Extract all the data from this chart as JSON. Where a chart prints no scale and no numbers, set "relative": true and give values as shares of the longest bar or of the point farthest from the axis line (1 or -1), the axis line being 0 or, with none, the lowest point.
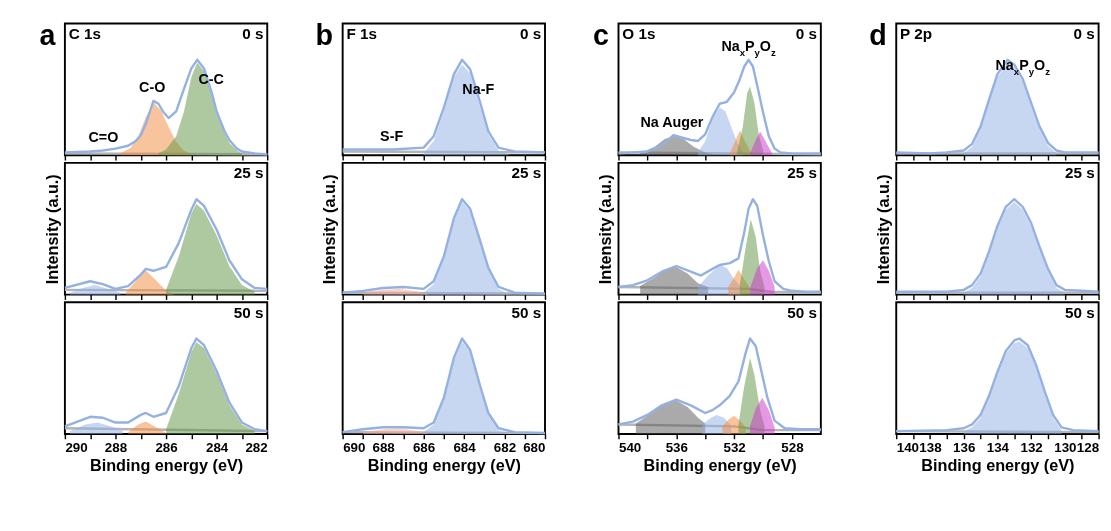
{
  "chart_data": [
    {
      "type": "line",
      "relative": true,
      "title": "a",
      "subtitle": "C 1s",
      "annotations": [
        "0 s",
        {
          "text": "C=O",
          "x": 288.5,
          "y": 0.05
        },
        {
          "text": "C-O",
          "x": 286.5,
          "y": 0.57
        },
        {
          "text": "C-C",
          "x": 284.2,
          "y": 0.66
        }
      ],
      "xlim": [
        290,
        282
      ],
      "xticks": [
        290,
        {
          "value": 289,
          "label": null
        },
        288,
        {
          "value": 287,
          "label": null
        },
        286,
        {
          "value": 285,
          "label": null
        },
        284,
        {
          "value": 283,
          "label": null
        },
        282
      ],
      "tick_labels": false,
      "series": [
        {
          "color": "#b4b4b4",
          "x": [
            290,
            282
          ],
          "values": [
            0.02,
            0.01
          ]
        },
        {
          "type": "area",
          "color": "#f08a3c",
          "x": [
            287.8,
            287.4,
            287.1,
            286.8,
            286.48,
            286.2,
            285.9,
            285.6,
            285.3,
            285.0
          ],
          "values": [
            0.02,
            0.08,
            0.2,
            0.4,
            0.55,
            0.47,
            0.3,
            0.14,
            0.05,
            0.01
          ]
        },
        {
          "type": "area",
          "color": "#5e9440",
          "x": [
            286.3,
            286.0,
            285.6,
            285.3,
            285.0,
            284.77,
            284.5,
            284.2,
            284.0,
            283.7,
            283.5,
            283.2,
            283.0
          ],
          "values": [
            0.02,
            0.06,
            0.2,
            0.45,
            0.82,
            0.97,
            0.88,
            0.64,
            0.44,
            0.24,
            0.13,
            0.05,
            0.02
          ]
        },
        {
          "color": "#94b1e2",
          "x": [
            290,
            289,
            288.5,
            288,
            287.5,
            287.2,
            287,
            286.8,
            286.5,
            286.3,
            286.1,
            285.9,
            285.6,
            285.3,
            285,
            284.77,
            284.5,
            284.2,
            284,
            283.7,
            283.5,
            283.2,
            283,
            282.5,
            282
          ],
          "values": [
            0.03,
            0.04,
            0.05,
            0.07,
            0.1,
            0.15,
            0.21,
            0.33,
            0.57,
            0.54,
            0.45,
            0.39,
            0.46,
            0.69,
            0.91,
            1,
            0.91,
            0.66,
            0.46,
            0.26,
            0.16,
            0.07,
            0.04,
            0.02,
            0.01
          ]
        }
      ]
    },
    {
      "type": "line",
      "relative": true,
      "ylabel": "Intensity (a.u.)",
      "annotations": [
        "25 s"
      ],
      "xlim": [
        290,
        282
      ],
      "xticks": [
        290,
        {
          "value": 289,
          "label": null
        },
        288,
        {
          "value": 287,
          "label": null
        },
        286,
        {
          "value": 285,
          "label": null
        },
        284,
        {
          "value": 283,
          "label": null
        },
        282
      ],
      "tick_labels": false,
      "series": [
        {
          "color": "#b4b4b4",
          "x": [
            290,
            282
          ],
          "values": [
            0.05,
            0.04
          ]
        },
        {
          "type": "area",
          "color": "#8fb0e6",
          "x": [
            289.8,
            289.3,
            288.8,
            288.3,
            287.8
          ],
          "values": [
            0.02,
            0.07,
            0.1,
            0.06,
            0.02
          ]
        },
        {
          "type": "area",
          "color": "#f08a3c",
          "x": [
            287.6,
            287.2,
            286.83,
            286.4,
            286.0,
            285.7
          ],
          "values": [
            0.02,
            0.14,
            0.26,
            0.15,
            0.04,
            0.01
          ]
        },
        {
          "type": "area",
          "color": "#5e9440",
          "x": [
            286.0,
            285.5,
            285.0,
            284.8,
            284.5,
            284.0,
            283.5,
            283.0,
            282.5
          ],
          "values": [
            0.05,
            0.4,
            0.85,
            0.95,
            0.88,
            0.62,
            0.3,
            0.1,
            0.03
          ]
        },
        {
          "color": "#94b1e2",
          "x": [
            290,
            289,
            288.5,
            288,
            287.5,
            287,
            286.8,
            286.5,
            286,
            285.5,
            285,
            284.8,
            284.5,
            284,
            283.5,
            283,
            282.5,
            282
          ],
          "values": [
            0.07,
            0.14,
            0.11,
            0.06,
            0.09,
            0.21,
            0.27,
            0.25,
            0.29,
            0.54,
            0.89,
            1,
            0.93,
            0.68,
            0.36,
            0.16,
            0.07,
            0.06
          ]
        }
      ]
    },
    {
      "type": "line",
      "relative": true,
      "xlabel": "Binding energy (eV)",
      "annotations": [
        "50 s"
      ],
      "xlim": [
        290,
        282
      ],
      "xticks": [
        290,
        {
          "value": 289,
          "label": null
        },
        288,
        {
          "value": 287,
          "label": null
        },
        286,
        {
          "value": 285,
          "label": null
        },
        284,
        {
          "value": 283,
          "label": null
        },
        282
      ],
      "tick_labels": "x",
      "series": [
        {
          "color": "#b4b4b4",
          "x": [
            290,
            282
          ],
          "values": [
            0.06,
            0.03
          ]
        },
        {
          "type": "area",
          "color": "#8fb0e6",
          "x": [
            289.8,
            289.2,
            288.7,
            288.2,
            287.7
          ],
          "values": [
            0.03,
            0.1,
            0.12,
            0.08,
            0.03
          ]
        },
        {
          "type": "area",
          "color": "#f08a3c",
          "x": [
            287.5,
            287.1,
            286.8,
            286.4,
            286.0
          ],
          "values": [
            0.02,
            0.1,
            0.13,
            0.07,
            0.01
          ]
        },
        {
          "type": "area",
          "color": "#5e9440",
          "x": [
            286.0,
            285.5,
            285.0,
            284.8,
            284.5,
            284.0,
            283.5,
            283.0,
            282.5
          ],
          "values": [
            0.05,
            0.42,
            0.86,
            0.96,
            0.9,
            0.63,
            0.3,
            0.1,
            0.03
          ]
        },
        {
          "color": "#94b1e2",
          "x": [
            290,
            289,
            288.5,
            288,
            287.5,
            287,
            286.8,
            286.5,
            286,
            285.5,
            285,
            284.8,
            284.5,
            284,
            283.5,
            283,
            282.5,
            282
          ],
          "values": [
            0.08,
            0.18,
            0.17,
            0.12,
            0.12,
            0.2,
            0.22,
            0.18,
            0.22,
            0.5,
            0.9,
            1,
            0.93,
            0.66,
            0.33,
            0.12,
            0.05,
            0.03
          ]
        }
      ]
    },
    {
      "type": "line",
      "relative": true,
      "title": "b",
      "subtitle": "F 1s",
      "annotations": [
        "0 s",
        {
          "text": "S-F",
          "x": 687.5,
          "y": 0.06
        },
        {
          "text": "Na-F",
          "x": 683.2,
          "y": 0.55
        }
      ],
      "xlim": [
        690,
        680
      ],
      "xticks": [
        690,
        {
          "value": 689,
          "label": null
        },
        688,
        {
          "value": 687,
          "label": null
        },
        686,
        {
          "value": 685,
          "label": null
        },
        684,
        {
          "value": 683,
          "label": null
        },
        682,
        {
          "value": 681,
          "label": null
        },
        680
      ],
      "tick_labels": false,
      "series": [
        {
          "color": "#b4b4b4",
          "x": [
            690,
            680
          ],
          "values": [
            0.04,
            0.03
          ]
        },
        {
          "type": "area",
          "color": "#8fb0e6",
          "x": [
            686,
            685.5,
            685,
            684.5,
            684.1,
            683.7,
            683.2,
            682.8,
            682.3,
            681.8
          ],
          "values": [
            0.02,
            0.15,
            0.46,
            0.82,
            0.95,
            0.86,
            0.5,
            0.22,
            0.05,
            0.01
          ]
        },
        {
          "color": "#94b1e2",
          "x": [
            690,
            688,
            687.5,
            686,
            685.5,
            685,
            684.5,
            684.1,
            683.7,
            683.2,
            682.8,
            682.3,
            681.5,
            680
          ],
          "values": [
            0.06,
            0.06,
            0.06,
            0.08,
            0.2,
            0.5,
            0.85,
            1,
            0.9,
            0.55,
            0.25,
            0.08,
            0.04,
            0.03
          ]
        }
      ]
    },
    {
      "type": "line",
      "relative": true,
      "ylabel": "Intensity (a.u.)",
      "annotations": [
        "25 s"
      ],
      "xlim": [
        690,
        680
      ],
      "xticks": [
        690,
        {
          "value": 689,
          "label": null
        },
        688,
        {
          "value": 687,
          "label": null
        },
        686,
        {
          "value": 685,
          "label": null
        },
        684,
        {
          "value": 683,
          "label": null
        },
        682,
        {
          "value": 681,
          "label": null
        },
        680
      ],
      "tick_labels": false,
      "series": [
        {
          "color": "#b4b4b4",
          "x": [
            690,
            680
          ],
          "values": [
            0.02,
            0.01
          ]
        },
        {
          "type": "area",
          "color": "#f4a89a",
          "x": [
            689,
            688,
            687.2,
            686.5,
            685.8
          ],
          "values": [
            0.02,
            0.05,
            0.06,
            0.04,
            0.01
          ]
        },
        {
          "type": "area",
          "color": "#8fb0e6",
          "x": [
            686,
            685.5,
            685,
            684.5,
            684.1,
            683.7,
            683.2,
            682.8,
            682.3,
            681.8
          ],
          "values": [
            0.02,
            0.11,
            0.37,
            0.77,
            0.97,
            0.88,
            0.54,
            0.26,
            0.06,
            0.01
          ]
        },
        {
          "color": "#94b1e2",
          "x": [
            690,
            689,
            688,
            687,
            686,
            685.5,
            685,
            684.5,
            684.1,
            683.7,
            683.2,
            682.8,
            682.3,
            681.5,
            680
          ],
          "values": [
            0.02,
            0.04,
            0.07,
            0.08,
            0.06,
            0.14,
            0.4,
            0.8,
            1,
            0.9,
            0.56,
            0.28,
            0.08,
            0.02,
            0.01
          ]
        }
      ]
    },
    {
      "type": "line",
      "relative": true,
      "xlabel": "Binding energy (eV)",
      "annotations": [
        "50 s"
      ],
      "xlim": [
        690,
        680
      ],
      "xticks": [
        690,
        {
          "value": 689,
          "label": null
        },
        688,
        {
          "value": 687,
          "label": null
        },
        686,
        {
          "value": 685,
          "label": null
        },
        684,
        {
          "value": 683,
          "label": null
        },
        682,
        {
          "value": 681,
          "label": null
        },
        680
      ],
      "tick_labels": "x",
      "series": [
        {
          "color": "#b4b4b4",
          "x": [
            690,
            680
          ],
          "values": [
            0.02,
            0.01
          ]
        },
        {
          "type": "area",
          "color": "#f4a89a",
          "x": [
            689,
            688,
            687.2,
            686.5,
            685.8
          ],
          "values": [
            0.02,
            0.05,
            0.06,
            0.04,
            0.01
          ]
        },
        {
          "type": "area",
          "color": "#8fb0e6",
          "x": [
            686,
            685.5,
            685,
            684.5,
            684.1,
            683.7,
            683.2,
            682.8,
            682.3,
            681.8
          ],
          "values": [
            0.02,
            0.1,
            0.35,
            0.77,
            0.97,
            0.86,
            0.48,
            0.2,
            0.04,
            0.01
          ]
        },
        {
          "color": "#94b1e2",
          "x": [
            690,
            689,
            688,
            687,
            686,
            685.5,
            685,
            684.5,
            684.1,
            683.7,
            683.2,
            682.8,
            682.3,
            681.5,
            680
          ],
          "values": [
            0.02,
            0.05,
            0.07,
            0.07,
            0.06,
            0.12,
            0.38,
            0.8,
            1,
            0.88,
            0.5,
            0.22,
            0.06,
            0.02,
            0.01
          ]
        }
      ]
    },
    {
      "type": "line",
      "relative": true,
      "title": "c",
      "subtitle": "O 1s",
      "annotations": [
        "0 s",
        {
          "text": "Na Auger",
          "x": 536.2,
          "y": 0.21
        },
        {
          "text": "Na$_{x}$P$_{y}$O$_{z}$",
          "x": 531,
          "y": 1
        }
      ],
      "xlim": [
        540,
        526
      ],
      "xticks": [
        540,
        {
          "value": 538,
          "label": null
        },
        536,
        {
          "value": 534,
          "label": null
        },
        532,
        {
          "value": 530,
          "label": null
        },
        528
      ],
      "tick_labels": false,
      "series": [
        {
          "color": "#b4b4b4",
          "x": [
            540,
            526
          ],
          "values": [
            0.03,
            0.01
          ]
        },
        {
          "type": "area",
          "color": "#555555",
          "x": [
            538.5,
            537.5,
            536.8,
            536.2,
            535.5,
            534.8,
            534.0,
            533.5
          ],
          "values": [
            0.02,
            0.09,
            0.17,
            0.2,
            0.17,
            0.09,
            0.03,
            0.01
          ]
        },
        {
          "type": "area",
          "color": "#8fb0e6",
          "x": [
            534.5,
            534.0,
            533.5,
            533.0,
            532.6,
            532.2,
            531.8,
            531.4
          ],
          "values": [
            0.03,
            0.15,
            0.38,
            0.5,
            0.46,
            0.3,
            0.14,
            0.04
          ]
        },
        {
          "type": "area",
          "color": "#f08a3c",
          "x": [
            532.3,
            532.0,
            531.6,
            531.2,
            530.8
          ],
          "values": [
            0.02,
            0.12,
            0.26,
            0.13,
            0.02
          ]
        },
        {
          "type": "area",
          "color": "#5e9440",
          "x": [
            531.8,
            531.4,
            531.1,
            530.9,
            530.6,
            530.3,
            530.0
          ],
          "values": [
            0.03,
            0.3,
            0.65,
            0.72,
            0.55,
            0.22,
            0.05
          ]
        },
        {
          "type": "area",
          "color": "#cc33cc",
          "x": [
            530.9,
            530.5,
            530.2,
            529.8,
            529.4
          ],
          "values": [
            0.02,
            0.16,
            0.25,
            0.14,
            0.03
          ]
        },
        {
          "color": "#94b1e2",
          "x": [
            540,
            538,
            537,
            536.2,
            535,
            534.5,
            534,
            533.5,
            533,
            532.5,
            532,
            531.6,
            531.3,
            531,
            530.7,
            530.3,
            530,
            529.6,
            529.2,
            528.8,
            528,
            526
          ],
          "values": [
            0.02,
            0.04,
            0.1,
            0.21,
            0.16,
            0.15,
            0.22,
            0.4,
            0.54,
            0.56,
            0.66,
            0.8,
            0.93,
            1,
            0.93,
            0.66,
            0.45,
            0.2,
            0.07,
            0.03,
            0.02,
            0.02
          ]
        }
      ]
    },
    {
      "type": "line",
      "relative": true,
      "ylabel": "Intensity (a.u.)",
      "annotations": [
        "25 s"
      ],
      "xlim": [
        540,
        526
      ],
      "xticks": [
        540,
        {
          "value": 538,
          "label": null
        },
        536,
        {
          "value": 534,
          "label": null
        },
        532,
        {
          "value": 530,
          "label": null
        },
        528
      ],
      "tick_labels": false,
      "series": [
        {
          "color": "#b4b4b4",
          "x": [
            540,
            531,
            529.5,
            526
          ],
          "values": [
            0.08,
            0.06,
            0.03,
            0.02
          ]
        },
        {
          "type": "area",
          "color": "#555555",
          "x": [
            538.5,
            537.5,
            536.8,
            536.0,
            535.2,
            534.5,
            533.8
          ],
          "values": [
            0.09,
            0.18,
            0.26,
            0.29,
            0.22,
            0.12,
            0.08
          ]
        },
        {
          "type": "area",
          "color": "#8fb0e6",
          "x": [
            534.5,
            533.8,
            533.0,
            532.5,
            532.0,
            531.5
          ],
          "values": [
            0.08,
            0.2,
            0.31,
            0.28,
            0.16,
            0.08
          ]
        },
        {
          "type": "area",
          "color": "#f08a3c",
          "x": [
            532.4,
            532.0,
            531.7,
            531.3,
            530.9
          ],
          "values": [
            0.08,
            0.18,
            0.26,
            0.16,
            0.07
          ]
        },
        {
          "type": "area",
          "color": "#5e9440",
          "x": [
            531.6,
            531.2,
            530.85,
            530.5,
            530.2,
            529.9
          ],
          "values": [
            0.1,
            0.5,
            0.79,
            0.6,
            0.25,
            0.08
          ]
        },
        {
          "type": "area",
          "color": "#cc33cc",
          "x": [
            530.9,
            530.4,
            530.0,
            529.6,
            529.2
          ],
          "values": [
            0.07,
            0.28,
            0.36,
            0.25,
            0.08
          ]
        },
        {
          "color": "#94b1e2",
          "x": [
            540,
            539,
            538,
            537,
            536,
            535,
            534.3,
            533.5,
            533,
            532.3,
            531.7,
            531.3,
            531,
            530.7,
            530.4,
            530,
            529.6,
            529.2,
            528.6,
            528,
            527,
            526
          ],
          "values": [
            0.08,
            0.1,
            0.15,
            0.24,
            0.3,
            0.24,
            0.2,
            0.27,
            0.31,
            0.33,
            0.38,
            0.65,
            0.9,
            1,
            0.93,
            0.62,
            0.35,
            0.14,
            0.06,
            0.04,
            0.03,
            0.03
          ]
        }
      ]
    },
    {
      "type": "line",
      "relative": true,
      "xlabel": "Binding energy (eV)",
      "annotations": [
        "50 s"
      ],
      "xlim": [
        540,
        526
      ],
      "xticks": [
        540,
        {
          "value": 538,
          "label": null
        },
        536,
        {
          "value": 534,
          "label": null
        },
        532,
        {
          "value": 530,
          "label": null
        },
        528
      ],
      "tick_labels": "x",
      "series": [
        {
          "color": "#b4b4b4",
          "x": [
            540,
            532,
            530,
            526
          ],
          "values": [
            0.1,
            0.08,
            0.04,
            0.04
          ]
        },
        {
          "type": "area",
          "color": "#555555",
          "x": [
            538.8,
            538.0,
            537.0,
            536.0,
            535.2,
            534.5,
            534.0
          ],
          "values": [
            0.11,
            0.19,
            0.3,
            0.35,
            0.28,
            0.17,
            0.11
          ]
        },
        {
          "type": "area",
          "color": "#8fb0e6",
          "x": [
            534.2,
            533.6,
            533.2,
            532.7,
            532.2
          ],
          "values": [
            0.1,
            0.17,
            0.2,
            0.17,
            0.09
          ]
        },
        {
          "type": "area",
          "color": "#f08a3c",
          "x": [
            532.8,
            532.4,
            532.0,
            531.6,
            531.2
          ],
          "values": [
            0.08,
            0.15,
            0.19,
            0.14,
            0.07
          ]
        },
        {
          "type": "area",
          "color": "#5e9440",
          "x": [
            531.7,
            531.3,
            530.9,
            530.6,
            530.2,
            529.9
          ],
          "values": [
            0.1,
            0.5,
            0.8,
            0.62,
            0.25,
            0.08
          ]
        },
        {
          "type": "area",
          "color": "#cc33cc",
          "x": [
            530.9,
            530.5,
            530.05,
            529.6,
            529.2
          ],
          "values": [
            0.08,
            0.27,
            0.38,
            0.25,
            0.07
          ]
        },
        {
          "color": "#94b1e2",
          "x": [
            540,
            539,
            538,
            537,
            536,
            535,
            534,
            533.5,
            533,
            532.3,
            531.7,
            531.2,
            530.9,
            530.5,
            530.1,
            529.7,
            529.2,
            528.5,
            527.5,
            526
          ],
          "values": [
            0.1,
            0.13,
            0.2,
            0.3,
            0.36,
            0.3,
            0.22,
            0.25,
            0.3,
            0.4,
            0.55,
            0.85,
            1,
            0.92,
            0.65,
            0.38,
            0.14,
            0.06,
            0.05,
            0.05
          ]
        }
      ]
    },
    {
      "type": "line",
      "relative": true,
      "title": "d",
      "subtitle": "P 2p",
      "annotations": [
        "0 s",
        {
          "text": "Na$_{x}$P$_{y}$O$_{z}$",
          "x": 132.5,
          "y": 0.8
        }
      ],
      "xlim": [
        140,
        128
      ],
      "xticks": [
        140,
        {
          "value": 139,
          "label": null
        },
        138,
        {
          "value": 137,
          "label": null
        },
        136,
        {
          "value": 135,
          "label": null
        },
        134,
        {
          "value": 133,
          "label": null
        },
        132,
        {
          "value": 131,
          "label": null
        },
        130,
        {
          "value": 129,
          "label": null
        },
        128
      ],
      "tick_labels": false,
      "series": [
        {
          "color": "#b4b4b4",
          "x": [
            140,
            128
          ],
          "values": [
            0.02,
            0.02
          ]
        },
        {
          "type": "area",
          "color": "#8fb0e6",
          "x": [
            136,
            135.5,
            135,
            134.5,
            134,
            133.4,
            133,
            132.5,
            132,
            131.5,
            131,
            130.5
          ],
          "values": [
            0.02,
            0.09,
            0.27,
            0.55,
            0.82,
            0.97,
            0.92,
            0.77,
            0.52,
            0.27,
            0.1,
            0.02
          ]
        },
        {
          "color": "#94b1e2",
          "x": [
            140,
            138,
            137,
            136,
            135.5,
            135,
            134.5,
            134,
            133.4,
            133,
            132.5,
            132,
            131.5,
            131,
            130.5,
            130,
            128
          ],
          "values": [
            0.03,
            0.02,
            0.03,
            0.05,
            0.12,
            0.3,
            0.58,
            0.85,
            1,
            0.95,
            0.8,
            0.55,
            0.3,
            0.13,
            0.05,
            0.03,
            0.03
          ]
        }
      ]
    },
    {
      "type": "line",
      "relative": true,
      "ylabel": "Intensity (a.u.)",
      "annotations": [
        "25 s"
      ],
      "xlim": [
        140,
        128
      ],
      "xticks": [
        140,
        {
          "value": 139,
          "label": null
        },
        138,
        {
          "value": 137,
          "label": null
        },
        136,
        {
          "value": 135,
          "label": null
        },
        134,
        {
          "value": 133,
          "label": null
        },
        132,
        {
          "value": 131,
          "label": null
        },
        130,
        {
          "value": 129,
          "label": null
        },
        128
      ],
      "tick_labels": false,
      "series": [
        {
          "color": "#b4b4b4",
          "x": [
            140,
            128
          ],
          "values": [
            0.02,
            0.02
          ]
        },
        {
          "type": "area",
          "color": "#8fb0e6",
          "x": [
            136,
            135.5,
            135,
            134.5,
            134,
            133.5,
            133,
            132.5,
            132,
            131.5,
            131,
            130.5,
            130
          ],
          "values": [
            0.02,
            0.07,
            0.19,
            0.42,
            0.69,
            0.89,
            0.97,
            0.89,
            0.72,
            0.47,
            0.24,
            0.07,
            0.02
          ]
        },
        {
          "color": "#94b1e2",
          "x": [
            140,
            137,
            136,
            135.5,
            135,
            134.5,
            134,
            133.5,
            133,
            132.5,
            132,
            131.5,
            131,
            130.5,
            130,
            129,
            128
          ],
          "values": [
            0.03,
            0.03,
            0.05,
            0.1,
            0.22,
            0.45,
            0.72,
            0.92,
            1,
            0.92,
            0.75,
            0.5,
            0.27,
            0.1,
            0.05,
            0.04,
            0.03
          ]
        }
      ]
    },
    {
      "type": "line",
      "relative": true,
      "xlabel": "Binding energy (eV)",
      "annotations": [
        "50 s"
      ],
      "xlim": [
        140,
        128
      ],
      "xticks": [
        140,
        {
          "value": 139,
          "label": null
        },
        138,
        {
          "value": 137,
          "label": null
        },
        136,
        {
          "value": 135,
          "label": null
        },
        134,
        {
          "value": 133,
          "label": null
        },
        132,
        {
          "value": 131,
          "label": null
        },
        130,
        {
          "value": 129,
          "label": null
        },
        128
      ],
      "tick_labels": "x",
      "series": [
        {
          "color": "#b4b4b4",
          "x": [
            140,
            128
          ],
          "values": [
            0.03,
            0.02
          ]
        },
        {
          "type": "area",
          "color": "#8fb0e6",
          "x": [
            136,
            135.5,
            135,
            134.5,
            134,
            133.5,
            133,
            132.7,
            132.2,
            131.7,
            131.2,
            130.7,
            130.2
          ],
          "values": [
            0.03,
            0.07,
            0.17,
            0.37,
            0.62,
            0.84,
            0.95,
            0.97,
            0.9,
            0.69,
            0.42,
            0.17,
            0.04
          ]
        },
        {
          "color": "#94b1e2",
          "x": [
            140,
            137,
            136,
            135.5,
            135,
            134.5,
            134,
            133.5,
            133,
            132.7,
            132.2,
            131.7,
            131.2,
            130.7,
            130.2,
            129.5,
            128
          ],
          "values": [
            0.03,
            0.04,
            0.06,
            0.1,
            0.2,
            0.4,
            0.65,
            0.87,
            0.98,
            1,
            0.93,
            0.72,
            0.45,
            0.2,
            0.07,
            0.04,
            0.03
          ]
        }
      ]
    }
  ]
}
